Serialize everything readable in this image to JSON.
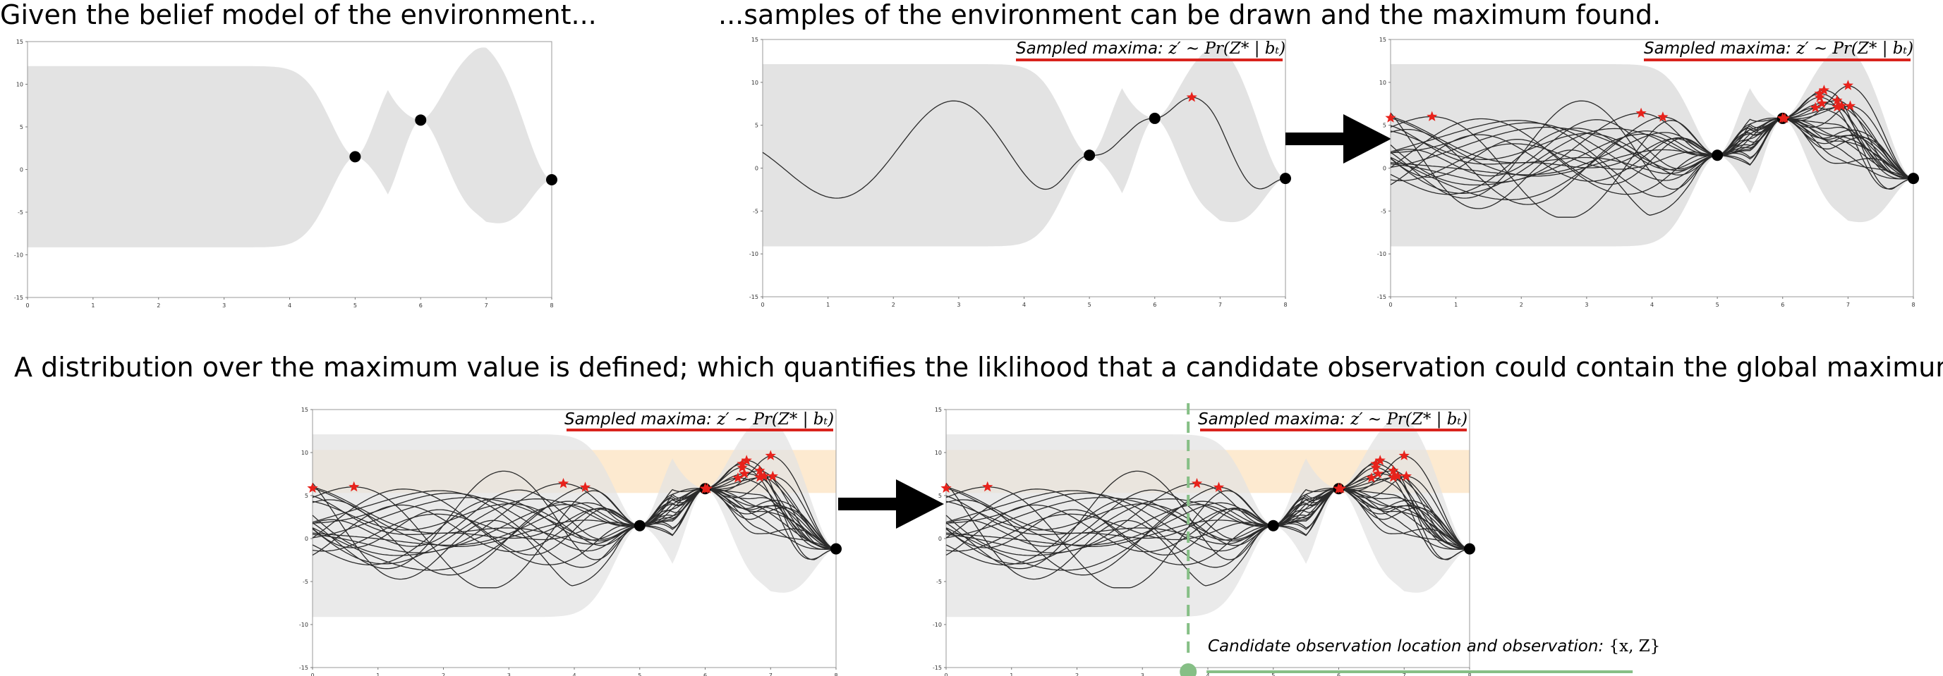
{
  "captions": {
    "belief_model": "Given the belief model of the environment...",
    "samples": "...samples of the environment can be drawn and the maximum found.",
    "distribution": "A distribution over the maximum value is defined; which quantifies the liklihood that a candidate observation could contain the global maximum."
  },
  "annotations": {
    "sampled_maxima_label": "Sampled maxima:",
    "sampled_maxima_math": "z′ ∼ Pr(Z* | bₜ)",
    "candidate_label": "Candidate observation location and observation:",
    "candidate_math": "{x, Z}"
  },
  "colors": {
    "uncertainty_band": "#e3e3e3",
    "maxima_band": "#fde6c8",
    "sample_line": "#2b2b2b",
    "observation_point": "#000000",
    "maxima_star": "#e8221b",
    "underline_red": "#d9231d",
    "candidate_green": "#86bf86",
    "arrow": "#000000"
  },
  "chart_data": {
    "type": "line",
    "xlim": [
      0,
      8
    ],
    "ylim": [
      -15,
      15
    ],
    "xticks": [
      "0",
      "1",
      "2",
      "3",
      "4",
      "5",
      "6",
      "7",
      "8"
    ],
    "yticks": [
      "15",
      "10",
      "5",
      "0",
      "-5",
      "-10",
      "-15"
    ],
    "observations": [
      {
        "x": 5,
        "y": 1.5
      },
      {
        "x": 6,
        "y": 5.8
      },
      {
        "x": 8,
        "y": -1.2
      }
    ],
    "maxima_band": [
      5.3,
      10.3
    ],
    "candidate_x": 3.7
  }
}
